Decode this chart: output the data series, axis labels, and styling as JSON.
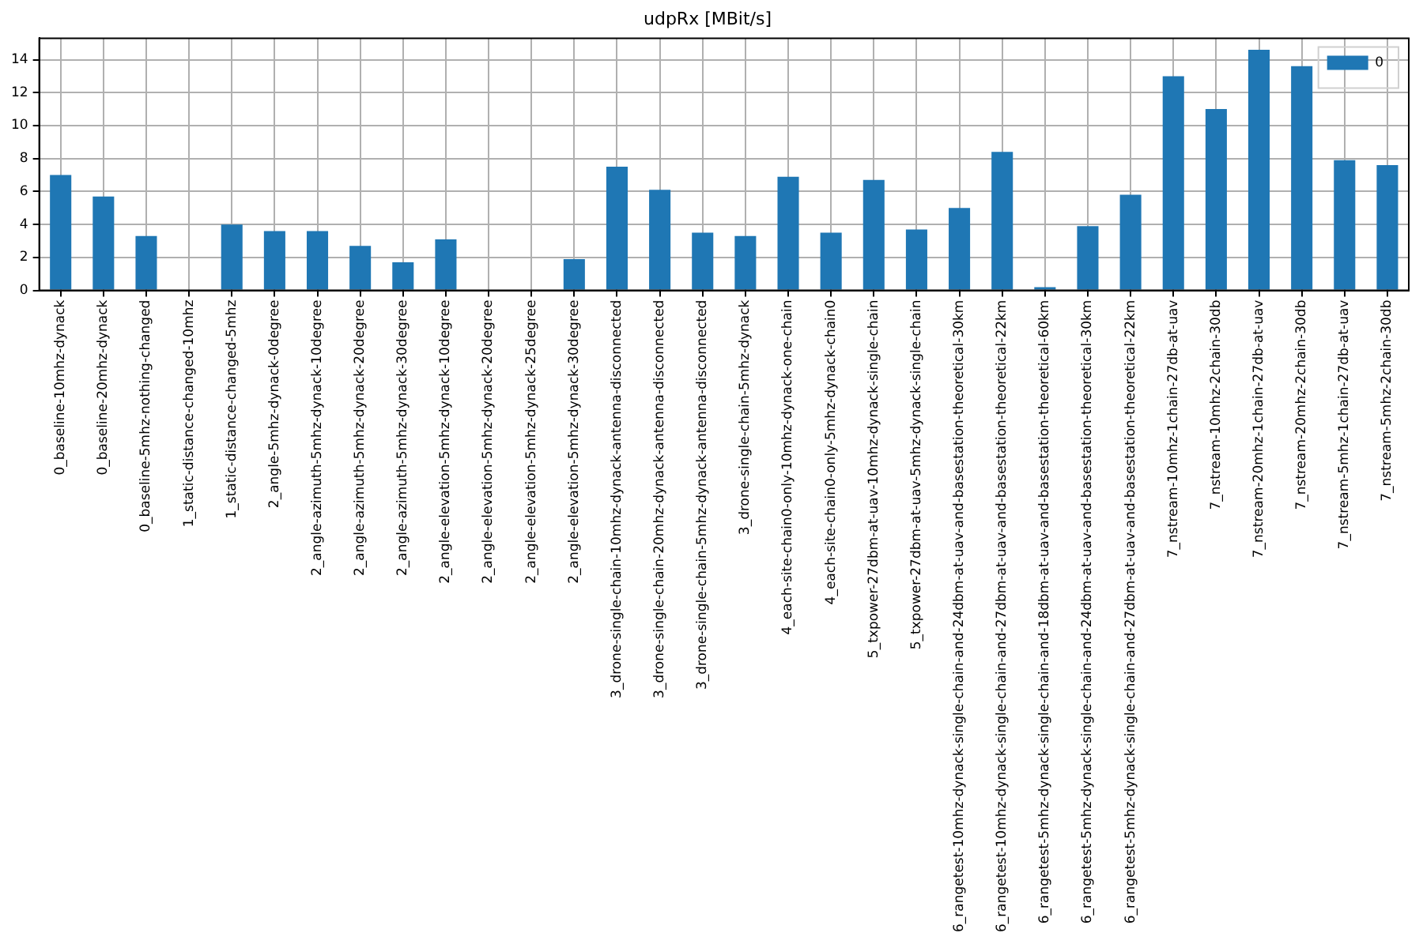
{
  "chart_data": {
    "type": "bar",
    "title": "udpRx [MBit/s]",
    "categories": [
      "0_baseline-10mhz-dynack",
      "0_baseline-20mhz-dynack",
      "0_baseline-5mhz-nothing-changed",
      "1_static-distance-changed-10mhz",
      "1_static-distance-changed-5mhz",
      "2_angle-5mhz-dynack-0degree",
      "2_angle-azimuth-5mhz-dynack-10degree",
      "2_angle-azimuth-5mhz-dynack-20degree",
      "2_angle-azimuth-5mhz-dynack-30degree",
      "2_angle-elevation-5mhz-dynack-10degree",
      "2_angle-elevation-5mhz-dynack-20degree",
      "2_angle-elevation-5mhz-dynack-25degree",
      "2_angle-elevation-5mhz-dynack-30degree",
      "3_drone-single-chain-10mhz-dynack-antenna-disconnected",
      "3_drone-single-chain-20mhz-dynack-antenna-disconnected",
      "3_drone-single-chain-5mhz-dynack-antenna-disconnected",
      "3_drone-single-chain-5mhz-dynack",
      "4_each-site-chain0-only-10mhz-dynack-one-chain",
      "4_each-site-chain0-only-5mhz-dynack-chain0",
      "5_txpower-27dbm-at-uav-10mhz-dynack-single-chain",
      "5_txpower-27dbm-at-uav-5mhz-dynack-single-chain",
      "6_rangetest-10mhz-dynack-single-chain-and-24dbm-at-uav-and-basestation-theoretical-30km",
      "6_rangetest-10mhz-dynack-single-chain-and-27dbm-at-uav-and-basestation-theoretical-22km",
      "6_rangetest-5mhz-dynack-single-chain-and-18dbm-at-uav-and-basestation-theoretical-60km",
      "6_rangetest-5mhz-dynack-single-chain-and-24dbm-at-uav-and-basestation-theoretical-30km",
      "6_rangetest-5mhz-dynack-single-chain-and-27dbm-at-uav-and-basestation-theoretical-22km",
      "7_nstream-10mhz-1chain-27db-at-uav",
      "7_nstream-10mhz-2chain-30db",
      "7_nstream-20mhz-1chain-27db-at-uav",
      "7_nstream-20mhz-2chain-30db",
      "7_nstream-5mhz-1chain-27db-at-uav",
      "7_nstream-5mhz-2chain-30db"
    ],
    "series": [
      {
        "name": "0",
        "color": "#1f77b4",
        "values": [
          7.0,
          5.7,
          3.3,
          null,
          4.0,
          3.6,
          3.6,
          2.7,
          1.7,
          3.1,
          null,
          null,
          1.9,
          7.5,
          6.1,
          3.5,
          3.3,
          6.9,
          3.5,
          6.7,
          3.7,
          5.0,
          8.4,
          0.2,
          3.9,
          5.8,
          13.0,
          11.0,
          14.6,
          13.6,
          7.9,
          7.6
        ]
      }
    ],
    "ylim": [
      0,
      15.3
    ],
    "yticks": [
      0,
      2,
      4,
      6,
      8,
      10,
      12,
      14
    ],
    "grid": true,
    "legend": "top right"
  }
}
